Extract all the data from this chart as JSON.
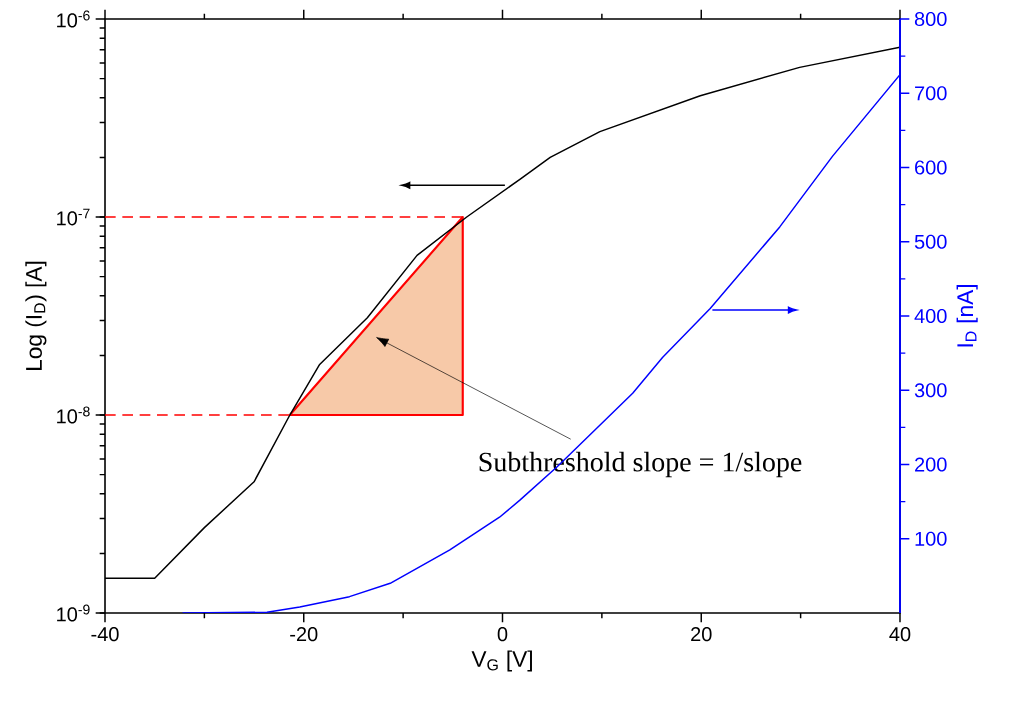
{
  "chart_data": {
    "type": "line",
    "xlabel": "V$_{G}$ [V]",
    "ylabel": "Log (I$_{D}$) [A]",
    "y2label": "I$_{D}$ [nA]",
    "xlim": [
      -40,
      40
    ],
    "xticks": [
      -40,
      -20,
      0,
      20,
      40
    ],
    "ylim": [
      1e-09,
      1e-06
    ],
    "yticks": [
      {
        "value": 1e-09,
        "label": "10$^{-9}$"
      },
      {
        "value": 1e-08,
        "label": "10$^{-8}$"
      },
      {
        "value": 1e-07,
        "label": "10$^{-7}$"
      },
      {
        "value": 1e-06,
        "label": "10$^{-6}$"
      }
    ],
    "y2lim": [
      0,
      800
    ],
    "y2ticks": [
      100,
      200,
      300,
      400,
      500,
      600,
      700,
      800
    ],
    "log": "y",
    "marker": "none",
    "series": [
      {
        "color": "#000000",
        "axis": "y",
        "x": [
          -40,
          -35,
          -30,
          -25,
          -21.4,
          -18.4,
          -13.6,
          -8.6,
          -3.6,
          1.75,
          4.8,
          9.8,
          19.9,
          29.9,
          40
        ],
        "values": [
          1.5e-09,
          1.5e-09,
          2.7e-09,
          4.6e-09,
          1e-08,
          1.8e-08,
          3.1e-08,
          6.4e-08,
          1e-07,
          1.55e-07,
          2e-07,
          2.7e-07,
          4.1e-07,
          5.7e-07,
          7.2e-07
        ]
      },
      {
        "color": "#0000ff",
        "axis": "y2",
        "x": [
          -32.2,
          -23.7,
          -20.4,
          -15.4,
          -11.3,
          -5.3,
          -0.3,
          1.75,
          5.5,
          13.1,
          16.1,
          20.9,
          27.9,
          33.2,
          40
        ],
        "values": [
          0,
          1,
          8,
          22,
          40,
          85,
          129,
          152,
          197,
          296,
          344,
          410,
          520,
          615,
          725
        ]
      },
      {
        "color": "#ff0000",
        "axis": "y",
        "line_style": "dashed",
        "x": [
          -40,
          -4
        ],
        "values": [
          1e-07,
          1e-07
        ]
      },
      {
        "color": "#ff0000",
        "axis": "y",
        "line_style": "dashed",
        "x": [
          -40,
          -21.4
        ],
        "values": [
          1e-08,
          1e-08
        ]
      },
      {
        "type": "area",
        "color": "#ff0000",
        "axis": "y",
        "line_style": "solid",
        "x": [
          -21.4,
          -4,
          -4,
          -21.4
        ],
        "values": [
          1e-08,
          1e-07,
          1e-08,
          1e-08
        ]
      }
    ],
    "annotations": [
      "Subthreshold slope = 1/slope"
    ]
  }
}
